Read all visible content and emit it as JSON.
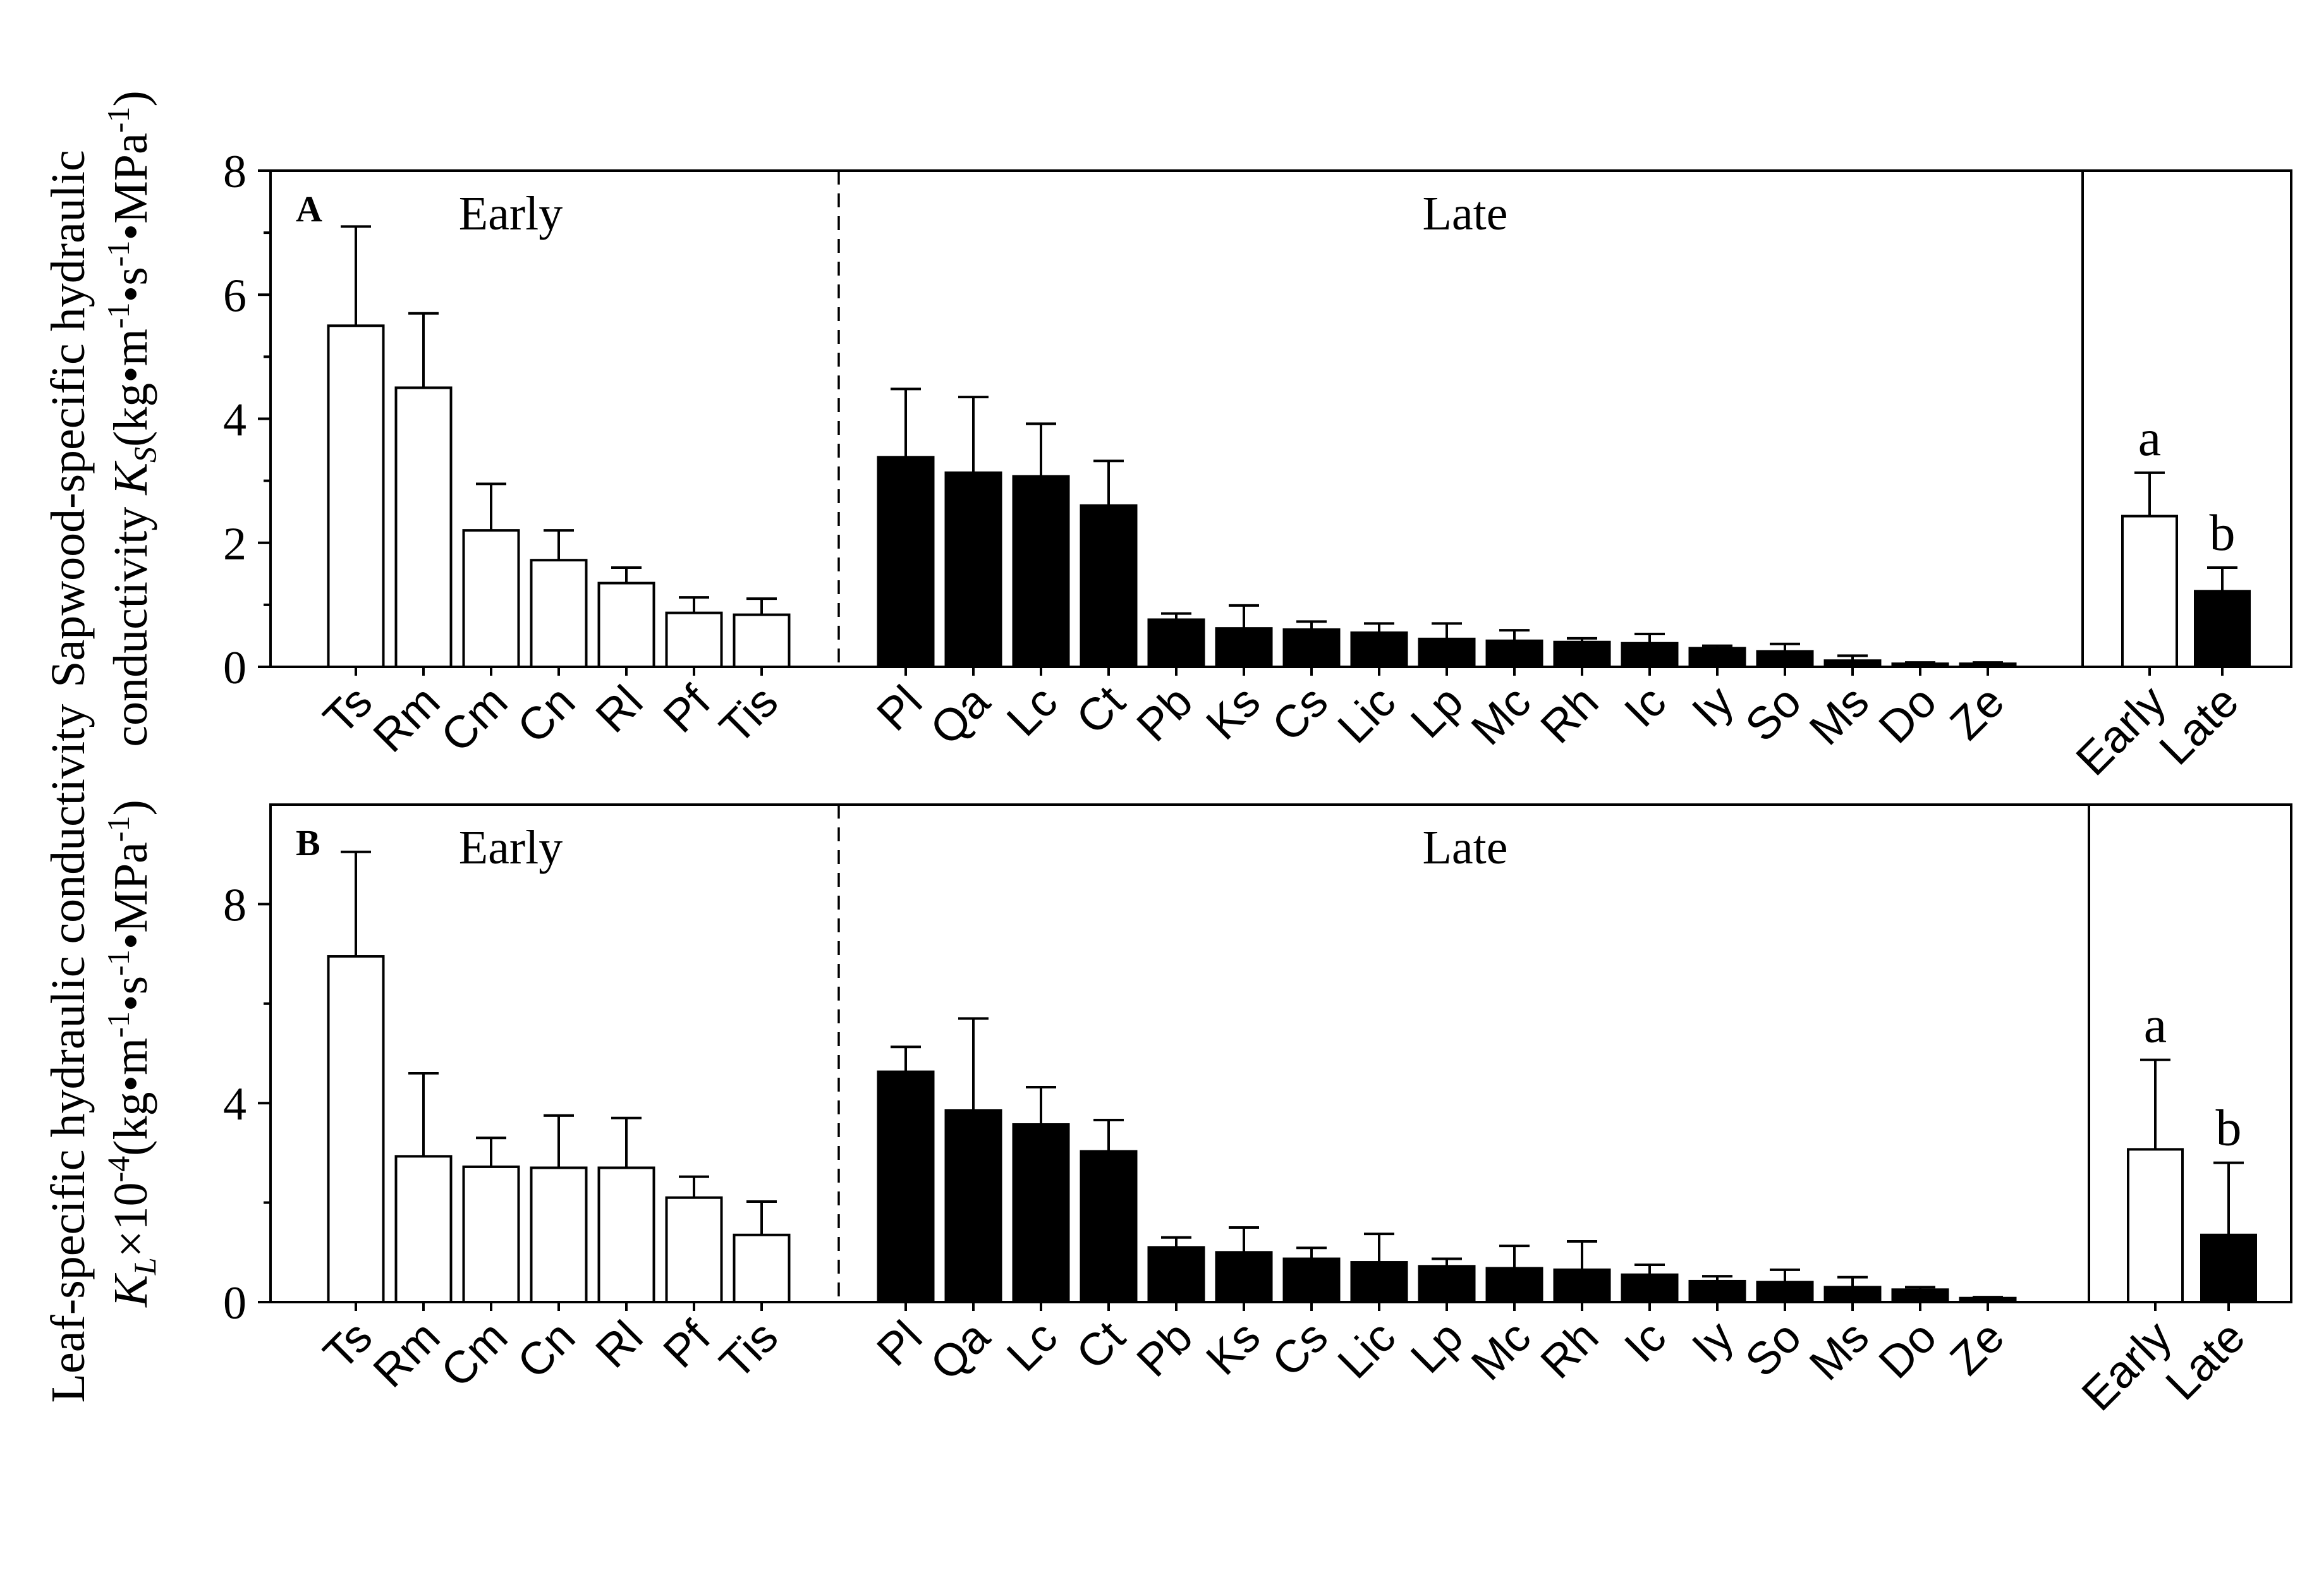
{
  "chart_data": [
    {
      "type": "bar",
      "panel_letter": "A",
      "ylabel_line1": "Sapwood-specific hydraulic",
      "ylabel_line2_pre": "conductivity ",
      "ylabel_var": "K",
      "ylabel_sub": "S",
      "ylabel_units_open": "(kg•m",
      "ylabel_units_s": "•s",
      "ylabel_units_mpa": "•MPa",
      "ylabel_units_close": ")",
      "ylabel_exp": "-1",
      "ylim": [
        0,
        8
      ],
      "yticks": [
        0,
        2,
        4,
        6,
        8
      ],
      "groups": [
        {
          "label": "Early",
          "fill": "#ffffff",
          "categories": [
            "Ts",
            "Rm",
            "Cm",
            "Cn",
            "Rl",
            "Pf",
            "Tis"
          ],
          "values": [
            5.5,
            4.5,
            2.2,
            1.72,
            1.35,
            0.87,
            0.84
          ],
          "errors": [
            1.6,
            1.2,
            0.75,
            0.48,
            0.25,
            0.25,
            0.26
          ]
        },
        {
          "label": "Late",
          "fill": "#000000",
          "categories": [
            "Pl",
            "Qa",
            "Lc",
            "Ct",
            "Pb",
            "Ks",
            "Cs",
            "Lic",
            "Lp",
            "Mc",
            "Rh",
            "Ic",
            "Iy",
            "So",
            "Ms",
            "Do",
            "Ze"
          ],
          "values": [
            3.38,
            3.13,
            3.07,
            2.6,
            0.76,
            0.62,
            0.6,
            0.55,
            0.45,
            0.42,
            0.4,
            0.38,
            0.3,
            0.25,
            0.1,
            0.05,
            0.05
          ],
          "errors": [
            1.1,
            1.22,
            0.85,
            0.72,
            0.1,
            0.37,
            0.13,
            0.15,
            0.25,
            0.17,
            0.06,
            0.15,
            0.04,
            0.12,
            0.08,
            0.02,
            0.02
          ]
        }
      ],
      "summary": {
        "categories": [
          "Early",
          "Late"
        ],
        "values": [
          2.43,
          1.22
        ],
        "errors": [
          0.7,
          0.38
        ],
        "fills": [
          "#ffffff",
          "#000000"
        ],
        "letters": [
          "a",
          "b"
        ]
      }
    },
    {
      "type": "bar",
      "panel_letter": "B",
      "ylabel_line1": "Leaf-specific hydraulic conductivity",
      "ylabel_var": "K",
      "ylabel_sub": "L",
      "ylabel_times": "×10",
      "ylabel_pow": "-4",
      "ylabel_units_open": "(kg•m",
      "ylabel_units_s": "•s",
      "ylabel_units_mpa": "•MPa",
      "ylabel_units_close": ")",
      "ylabel_exp": "-1",
      "ylim": [
        0,
        10
      ],
      "yticks": [
        0,
        4,
        8
      ],
      "groups": [
        {
          "label": "Early",
          "fill": "#ffffff",
          "categories": [
            "Ts",
            "Rm",
            "Cm",
            "Cn",
            "Rl",
            "Pf",
            "Tis"
          ],
          "values": [
            6.95,
            2.93,
            2.72,
            2.7,
            2.7,
            2.1,
            1.35
          ],
          "errors": [
            2.1,
            1.67,
            0.58,
            1.05,
            1.0,
            0.42,
            0.67
          ]
        },
        {
          "label": "Late",
          "fill": "#000000",
          "categories": [
            "Pl",
            "Qa",
            "Lc",
            "Ct",
            "Pb",
            "Ks",
            "Cs",
            "Lic",
            "Lp",
            "Mc",
            "Rh",
            "Ic",
            "Iy",
            "So",
            "Ms",
            "Do",
            "Ze"
          ],
          "values": [
            4.63,
            3.85,
            3.57,
            3.03,
            1.1,
            1.0,
            0.87,
            0.8,
            0.72,
            0.68,
            0.65,
            0.55,
            0.42,
            0.4,
            0.3,
            0.25,
            0.08
          ],
          "errors": [
            0.5,
            1.85,
            0.75,
            0.63,
            0.2,
            0.5,
            0.22,
            0.57,
            0.15,
            0.45,
            0.57,
            0.2,
            0.1,
            0.25,
            0.2,
            0.05,
            0.02
          ]
        }
      ],
      "summary": {
        "categories": [
          "Early",
          "Late"
        ],
        "values": [
          3.07,
          1.35
        ],
        "errors": [
          1.8,
          1.45
        ],
        "fills": [
          "#ffffff",
          "#000000"
        ],
        "letters": [
          "a",
          "b"
        ]
      }
    }
  ]
}
